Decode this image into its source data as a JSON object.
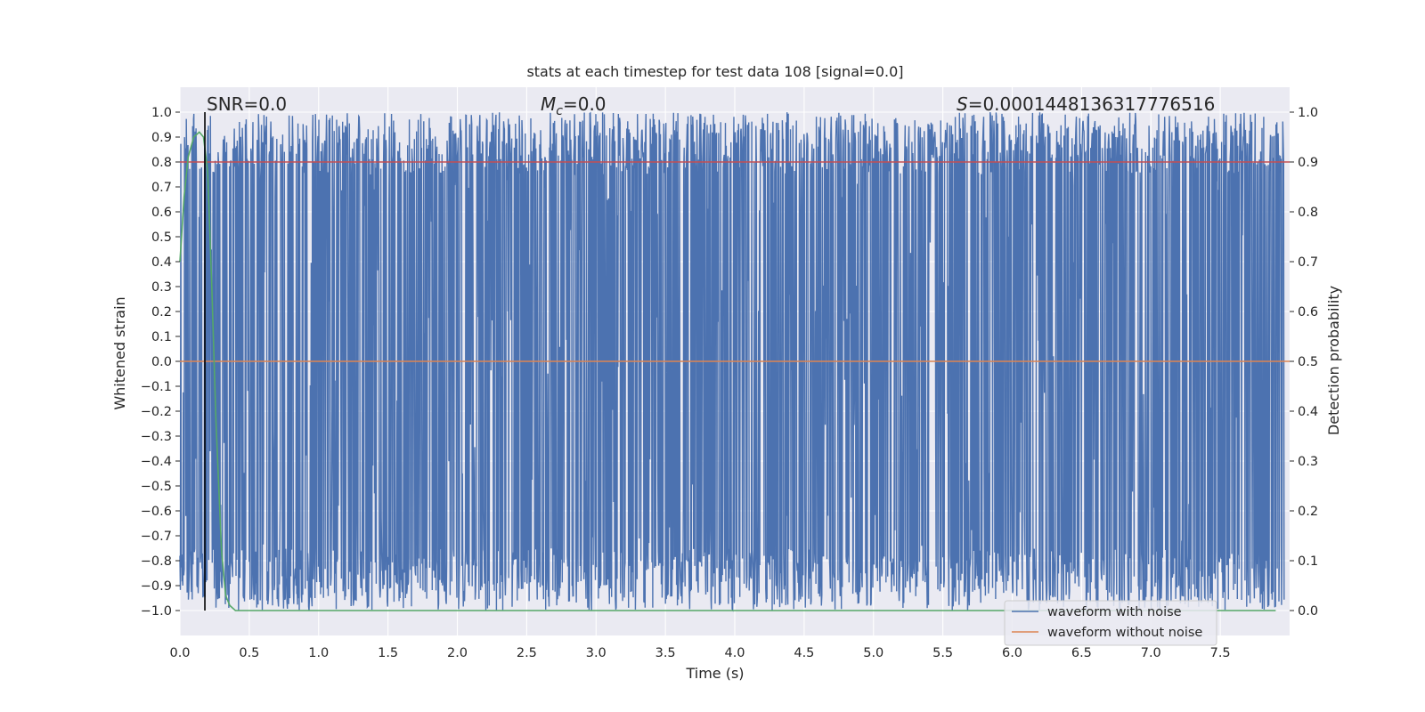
{
  "chart_data": {
    "type": "line",
    "title": "stats at each timestep for test data 108 [signal=0.0]",
    "xlabel": "Time (s)",
    "ylabel": "Whitened strain",
    "ylabel_right": "Detection probability",
    "xlim": [
      0.0,
      8.0
    ],
    "ylim": [
      -1.1,
      1.1
    ],
    "ylim_right": [
      -0.05,
      1.05
    ],
    "x_ticks": [
      "0.0",
      "0.5",
      "1.0",
      "1.5",
      "2.0",
      "2.5",
      "3.0",
      "3.5",
      "4.0",
      "4.5",
      "5.0",
      "5.5",
      "6.0",
      "6.5",
      "7.0",
      "7.5"
    ],
    "y_ticks": [
      "1.0",
      "0.9",
      "0.8",
      "0.7",
      "0.6",
      "0.5",
      "0.4",
      "0.3",
      "0.2",
      "0.1",
      "0.0",
      "−0.1",
      "−0.2",
      "−0.3",
      "−0.4",
      "−0.5",
      "−0.6",
      "−0.7",
      "−0.8",
      "−0.9",
      "−1.0"
    ],
    "y_ticks_right": [
      "1.0",
      "0.9",
      "0.8",
      "0.7",
      "0.6",
      "0.5",
      "0.4",
      "0.3",
      "0.2",
      "0.1",
      "0.0"
    ],
    "grid": true,
    "legend_position": "lower-right",
    "annotations": {
      "snr": "SNR=0.0",
      "mc_symbol": "M",
      "mc_subscript": "c",
      "mc_value": "=0.0",
      "s_symbol": "S",
      "s_value": "=0.0001448136317776516"
    },
    "series": [
      {
        "name": "waveform with noise",
        "color": "#4c72b0",
        "description_of_values": "dense noise filling full range",
        "amplitude_range": [
          -1.0,
          1.0
        ]
      },
      {
        "name": "waveform without noise",
        "color": "#dd8452",
        "x": [
          0.0,
          8.0
        ],
        "y": [
          0.0,
          0.0
        ]
      },
      {
        "color": "#55a868",
        "axis": "right",
        "x": [
          0.0,
          0.03,
          0.06,
          0.1,
          0.14,
          0.17,
          0.2,
          0.23,
          0.26,
          0.3,
          0.33,
          0.36,
          0.4,
          0.5,
          1.0,
          2.0,
          3.0,
          4.0,
          5.0,
          6.0,
          7.0,
          7.9
        ],
        "y": [
          0.7,
          0.83,
          0.91,
          0.95,
          0.96,
          0.95,
          0.88,
          0.65,
          0.38,
          0.12,
          0.03,
          0.01,
          0.0,
          0.0,
          0.0,
          0.0,
          0.0,
          0.0,
          0.0,
          0.0,
          0.0,
          0.0
        ]
      }
    ],
    "threshold_line": {
      "color": "#c44e52",
      "axis": "right",
      "value": 0.9
    },
    "marker_line": {
      "color": "#000000",
      "x": 0.18
    }
  },
  "colors": {
    "plot_bg": "#eaeaf2",
    "grid": "#ffffff",
    "legend_bg": "#eaeaf2"
  }
}
